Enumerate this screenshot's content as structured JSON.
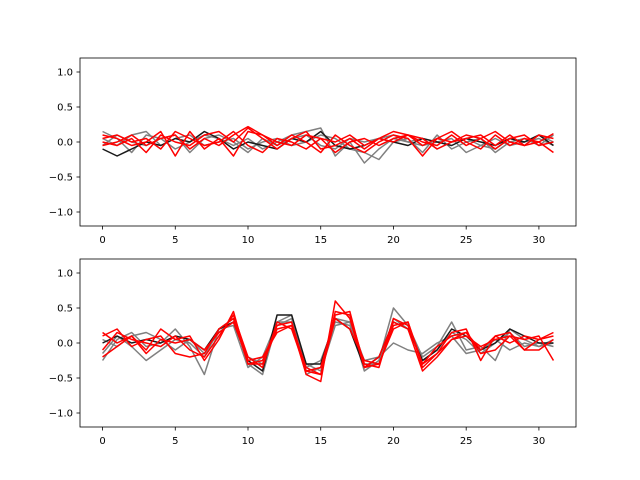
{
  "chart_data": [
    {
      "type": "line",
      "title": "",
      "xlabel": "",
      "ylabel": "",
      "xlim": [
        -1.55,
        32.55
      ],
      "ylim": [
        -1.2,
        1.2
      ],
      "xticks": [
        0,
        5,
        10,
        15,
        20,
        25,
        30
      ],
      "yticks": [
        -1.0,
        -0.5,
        0.0,
        0.5,
        1.0
      ],
      "ytick_labels": [
        "−1.0",
        "−0.5",
        "0.0",
        "0.5",
        "1.0"
      ],
      "grid": false,
      "legend": "none",
      "x": [
        0,
        1,
        2,
        3,
        4,
        5,
        6,
        7,
        8,
        9,
        10,
        11,
        12,
        13,
        14,
        15,
        16,
        17,
        18,
        19,
        20,
        21,
        22,
        23,
        24,
        25,
        26,
        27,
        28,
        29,
        30,
        31
      ],
      "series": [
        {
          "color": "#808080",
          "values": [
            0.15,
            0.05,
            -0.15,
            0.1,
            0.05,
            -0.1,
            0.0,
            0.1,
            0.05,
            -0.05,
            0.05,
            -0.1,
            0.0,
            0.1,
            0.15,
            0.2,
            -0.2,
            0.0,
            -0.3,
            -0.1,
            0.05,
            0.0,
            -0.05,
            0.0,
            0.05,
            -0.15,
            -0.05,
            -0.1,
            0.05,
            0.0,
            0.1,
            0.0
          ]
        },
        {
          "color": "#808080",
          "values": [
            0.05,
            -0.05,
            0.1,
            0.15,
            -0.05,
            0.05,
            0.1,
            -0.05,
            0.0,
            0.05,
            -0.1,
            0.0,
            0.05,
            -0.05,
            0.0,
            0.1,
            0.05,
            -0.1,
            -0.15,
            -0.25,
            0.0,
            0.05,
            -0.15,
            0.1,
            -0.1,
            0.0,
            0.05,
            -0.15,
            0.0,
            0.05,
            -0.05,
            0.1
          ]
        },
        {
          "color": "#808080",
          "values": [
            -0.05,
            0.1,
            0.0,
            -0.05,
            0.05,
            0.1,
            -0.15,
            0.05,
            0.1,
            0.0,
            -0.15,
            0.05,
            -0.05,
            0.05,
            0.1,
            -0.05,
            -0.1,
            0.05,
            0.0,
            0.05,
            0.1,
            0.0,
            0.05,
            -0.1,
            0.0,
            0.05,
            -0.05,
            0.05,
            -0.05,
            0.0,
            0.05,
            -0.05
          ]
        },
        {
          "color": "#1a1a1a",
          "values": [
            -0.1,
            -0.2,
            -0.1,
            0.0,
            -0.05,
            0.05,
            0.0,
            0.15,
            0.05,
            -0.1,
            0.0,
            -0.05,
            -0.1,
            0.05,
            0.0,
            0.15,
            -0.05,
            -0.1,
            -0.05,
            0.05,
            0.0,
            -0.05,
            0.05,
            0.0,
            -0.05,
            0.05,
            0.0,
            -0.05,
            0.05,
            0.0,
            0.1,
            -0.05
          ]
        },
        {
          "color": "#ff0000",
          "values": [
            0.1,
            0.05,
            -0.05,
            0.0,
            0.15,
            -0.2,
            0.15,
            -0.1,
            0.05,
            -0.2,
            0.15,
            0.1,
            -0.05,
            0.1,
            0.0,
            -0.15,
            0.1,
            -0.05,
            -0.15,
            0.0,
            0.1,
            0.05,
            -0.2,
            0.05,
            0.15,
            0.0,
            -0.1,
            0.1,
            -0.05,
            0.05,
            0.0,
            -0.15
          ]
        },
        {
          "color": "#ff0000",
          "values": [
            0.05,
            0.1,
            0.0,
            0.05,
            -0.1,
            0.15,
            0.05,
            -0.05,
            0.0,
            0.15,
            -0.05,
            -0.15,
            0.05,
            0.0,
            -0.1,
            0.05,
            0.0,
            0.1,
            -0.05,
            0.05,
            0.15,
            0.1,
            0.0,
            -0.05,
            0.1,
            -0.05,
            0.05,
            0.15,
            0.0,
            -0.05,
            0.1,
            0.05
          ]
        },
        {
          "color": "#ff0000",
          "values": [
            0.0,
            -0.05,
            0.05,
            -0.15,
            0.1,
            0.0,
            -0.05,
            0.1,
            0.15,
            0.0,
            0.2,
            0.05,
            -0.1,
            0.05,
            0.15,
            -0.1,
            -0.05,
            0.05,
            -0.1,
            0.05,
            0.0,
            0.1,
            0.05,
            -0.1,
            0.0,
            0.1,
            0.05,
            -0.1,
            0.05,
            0.1,
            -0.05,
            0.0
          ]
        },
        {
          "color": "#ff0000",
          "values": [
            -0.05,
            0.0,
            0.1,
            -0.05,
            0.05,
            0.1,
            -0.1,
            0.05,
            -0.05,
            0.1,
            0.22,
            0.1,
            0.0,
            -0.05,
            0.1,
            0.05,
            -0.15,
            0.0,
            0.05,
            -0.05,
            0.05,
            0.1,
            -0.05,
            0.05,
            0.0,
            0.05,
            0.1,
            -0.05,
            0.1,
            -0.05,
            0.0,
            0.12
          ]
        }
      ]
    },
    {
      "type": "line",
      "title": "",
      "xlabel": "",
      "ylabel": "",
      "xlim": [
        -1.55,
        32.55
      ],
      "ylim": [
        -1.2,
        1.2
      ],
      "xticks": [
        0,
        5,
        10,
        15,
        20,
        25,
        30
      ],
      "yticks": [
        -1.0,
        -0.5,
        0.0,
        0.5,
        1.0
      ],
      "ytick_labels": [
        "−1.0",
        "−0.5",
        "0.0",
        "0.5",
        "1.0"
      ],
      "grid": false,
      "legend": "none",
      "x": [
        0,
        1,
        2,
        3,
        4,
        5,
        6,
        7,
        8,
        9,
        10,
        11,
        12,
        13,
        14,
        15,
        16,
        17,
        18,
        19,
        20,
        21,
        22,
        23,
        24,
        25,
        26,
        27,
        28,
        29,
        30,
        31
      ],
      "series": [
        {
          "color": "#808080",
          "values": [
            -0.25,
            0.05,
            0.15,
            -0.05,
            0.0,
            0.2,
            -0.05,
            -0.45,
            0.2,
            0.35,
            -0.3,
            -0.45,
            0.3,
            0.4,
            -0.45,
            -0.35,
            0.35,
            0.3,
            -0.4,
            -0.25,
            0.5,
            0.25,
            -0.2,
            -0.05,
            0.3,
            -0.1,
            -0.05,
            -0.25,
            0.2,
            0.05,
            -0.05,
            0.05
          ]
        },
        {
          "color": "#808080",
          "values": [
            0.05,
            -0.05,
            0.1,
            0.15,
            0.05,
            -0.1,
            0.05,
            -0.15,
            0.15,
            0.3,
            -0.2,
            -0.3,
            0.25,
            0.35,
            -0.35,
            -0.25,
            0.3,
            0.25,
            -0.3,
            -0.3,
            0.35,
            0.2,
            -0.25,
            -0.1,
            0.15,
            0.05,
            -0.15,
            0.0,
            0.15,
            -0.05,
            0.0,
            -0.05
          ]
        },
        {
          "color": "#808080",
          "values": [
            -0.15,
            0.1,
            -0.05,
            -0.25,
            -0.1,
            0.05,
            0.0,
            -0.2,
            0.2,
            0.25,
            -0.35,
            -0.2,
            0.3,
            0.3,
            -0.3,
            -0.4,
            0.25,
            0.3,
            -0.25,
            -0.2,
            0.0,
            -0.1,
            -0.15,
            0.0,
            0.1,
            -0.15,
            -0.1,
            0.05,
            -0.1,
            0.0,
            -0.05,
            0.0
          ]
        },
        {
          "color": "#1a1a1a",
          "values": [
            0.0,
            0.1,
            0.0,
            0.05,
            0.0,
            0.1,
            0.05,
            -0.1,
            0.2,
            0.3,
            -0.25,
            -0.4,
            0.4,
            0.4,
            -0.3,
            -0.3,
            0.35,
            0.2,
            -0.35,
            -0.2,
            0.3,
            0.2,
            -0.25,
            -0.1,
            0.2,
            0.1,
            -0.1,
            0.0,
            0.2,
            0.1,
            0.0,
            0.0
          ]
        },
        {
          "color": "#ff0000",
          "values": [
            0.15,
            0.0,
            0.1,
            -0.1,
            0.2,
            0.05,
            0.1,
            -0.25,
            0.05,
            0.45,
            -0.3,
            -0.3,
            0.2,
            0.25,
            -0.45,
            -0.55,
            0.6,
            0.35,
            -0.35,
            -0.3,
            0.25,
            0.3,
            -0.35,
            -0.15,
            0.15,
            0.2,
            -0.25,
            0.1,
            0.15,
            -0.1,
            -0.1,
            0.05
          ]
        },
        {
          "color": "#ff0000",
          "values": [
            -0.1,
            0.15,
            0.05,
            0.0,
            -0.05,
            0.1,
            -0.1,
            -0.2,
            0.1,
            0.4,
            -0.2,
            -0.35,
            0.3,
            0.2,
            -0.4,
            -0.45,
            0.45,
            0.4,
            -0.3,
            -0.35,
            0.35,
            0.25,
            -0.3,
            -0.05,
            0.1,
            0.15,
            -0.15,
            -0.1,
            0.1,
            0.05,
            0.1,
            -0.25
          ]
        },
        {
          "color": "#ff0000",
          "values": [
            0.1,
            0.2,
            -0.05,
            0.05,
            0.1,
            -0.15,
            -0.2,
            -0.15,
            0.2,
            0.35,
            -0.3,
            -0.25,
            0.25,
            0.3,
            -0.4,
            -0.35,
            0.4,
            0.45,
            -0.35,
            -0.2,
            0.3,
            0.2,
            -0.4,
            -0.2,
            0.05,
            0.15,
            -0.1,
            0.1,
            0.0,
            0.1,
            0.05,
            0.15
          ]
        },
        {
          "color": "#ff0000",
          "values": [
            -0.2,
            -0.05,
            0.1,
            -0.15,
            0.05,
            0.0,
            0.05,
            -0.1,
            0.15,
            0.3,
            -0.25,
            -0.2,
            0.15,
            0.25,
            -0.35,
            -0.45,
            0.35,
            0.2,
            -0.25,
            -0.3,
            0.2,
            0.3,
            -0.3,
            -0.15,
            0.05,
            0.1,
            -0.05,
            0.05,
            0.1,
            -0.1,
            0.05,
            0.1
          ]
        }
      ]
    }
  ]
}
